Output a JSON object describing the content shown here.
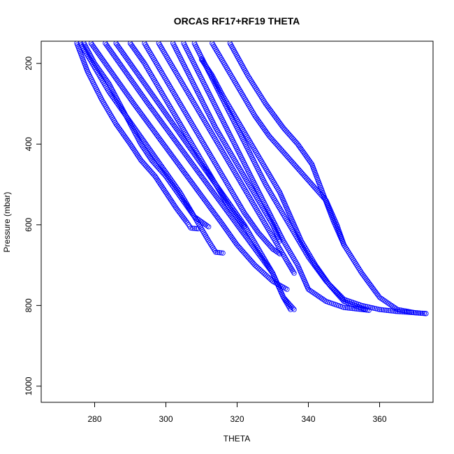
{
  "chart_data": {
    "type": "scatter",
    "title": "ORCAS RF17+RF19 THETA",
    "xlabel": "THETA",
    "ylabel": "Pressure (mbar)",
    "xlim": [
      265,
      375
    ],
    "ylim": [
      1040,
      145
    ],
    "y_reversed": true,
    "xticks": [
      280,
      300,
      320,
      340,
      360
    ],
    "yticks": [
      200,
      400,
      600,
      800,
      1000
    ],
    "marker": "open-circle",
    "color": "#0000ff",
    "grid": false,
    "series": [
      {
        "x": [
          275,
          278,
          282,
          286,
          290,
          293,
          297,
          300,
          303,
          306,
          307,
          309
        ],
        "y": [
          150,
          220,
          290,
          350,
          400,
          440,
          480,
          520,
          560,
          595,
          608,
          610
        ]
      },
      {
        "x": [
          276,
          280,
          284,
          288,
          292,
          296,
          300,
          304,
          308,
          312,
          314,
          316
        ],
        "y": [
          150,
          210,
          270,
          320,
          370,
          420,
          470,
          520,
          580,
          640,
          668,
          670
        ]
      },
      {
        "x": [
          277,
          280,
          284,
          287,
          290,
          293,
          296,
          300,
          304,
          308,
          312
        ],
        "y": [
          150,
          200,
          250,
          300,
          350,
          400,
          440,
          480,
          530,
          580,
          605
        ]
      },
      {
        "x": [
          279,
          283,
          287,
          291,
          296,
          301,
          306,
          311,
          316,
          320,
          325,
          330,
          334
        ],
        "y": [
          150,
          200,
          250,
          300,
          360,
          420,
          480,
          540,
          600,
          650,
          700,
          740,
          760
        ]
      },
      {
        "x": [
          283,
          287,
          291,
          295,
          300,
          305,
          310,
          315,
          320,
          325,
          330,
          333,
          335
        ],
        "y": [
          150,
          200,
          250,
          300,
          360,
          420,
          480,
          540,
          600,
          660,
          720,
          780,
          810
        ]
      },
      {
        "x": [
          286,
          290,
          294,
          298,
          302,
          306,
          310,
          314,
          318,
          322,
          326,
          330,
          333,
          336
        ],
        "y": [
          150,
          200,
          250,
          300,
          350,
          400,
          450,
          500,
          550,
          600,
          660,
          720,
          780,
          810
        ]
      },
      {
        "x": [
          290,
          294,
          298,
          302,
          306,
          310,
          314,
          318,
          322
        ],
        "y": [
          150,
          200,
          260,
          320,
          380,
          440,
          500,
          560,
          605
        ]
      },
      {
        "x": [
          294,
          298,
          302,
          306,
          310,
          314,
          318,
          322,
          326,
          330,
          332
        ],
        "y": [
          150,
          210,
          270,
          330,
          390,
          450,
          510,
          570,
          620,
          660,
          672
        ]
      },
      {
        "x": [
          298,
          302,
          306,
          310,
          314,
          318,
          322,
          326,
          330,
          334,
          336
        ],
        "y": [
          150,
          210,
          270,
          330,
          390,
          450,
          510,
          570,
          630,
          690,
          720
        ]
      },
      {
        "x": [
          302,
          306,
          310,
          314,
          318,
          322,
          326,
          330,
          332
        ],
        "y": [
          150,
          220,
          290,
          360,
          420,
          480,
          540,
          600,
          640
        ]
      },
      {
        "x": [
          305,
          309,
          313,
          317,
          321,
          325,
          329,
          333,
          337,
          340,
          345,
          350,
          357
        ],
        "y": [
          150,
          220,
          290,
          360,
          430,
          500,
          570,
          640,
          700,
          760,
          790,
          805,
          812
        ]
      },
      {
        "x": [
          308,
          312,
          316,
          320,
          324,
          328,
          332,
          336,
          340,
          345,
          350,
          355,
          360,
          365,
          370,
          373
        ],
        "y": [
          150,
          220,
          290,
          360,
          430,
          500,
          560,
          620,
          680,
          740,
          785,
          800,
          810,
          815,
          818,
          820
        ]
      },
      {
        "x": [
          310,
          313,
          316,
          320,
          324,
          328,
          332,
          335,
          338,
          342,
          346,
          350,
          356
        ],
        "y": [
          190,
          230,
          280,
          340,
          400,
          460,
          520,
          580,
          640,
          700,
          750,
          790,
          810
        ]
      },
      {
        "x": [
          313,
          317,
          321,
          325,
          329,
          333,
          337,
          341,
          345,
          348,
          350
        ],
        "y": [
          150,
          210,
          270,
          330,
          380,
          420,
          460,
          500,
          540,
          600,
          650
        ]
      },
      {
        "x": [
          318,
          323,
          328,
          333,
          337,
          341,
          344,
          347,
          350,
          355,
          360,
          365,
          370,
          373
        ],
        "y": [
          150,
          230,
          300,
          360,
          400,
          450,
          520,
          590,
          650,
          720,
          780,
          810,
          818,
          820
        ]
      }
    ]
  }
}
